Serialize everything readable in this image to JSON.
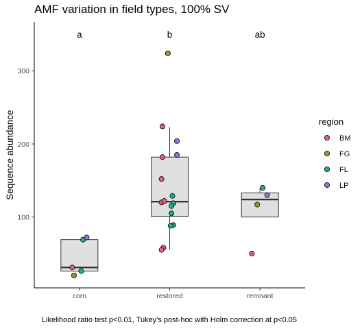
{
  "chart_data": {
    "type": "boxplot",
    "title": "AMF variation in field types, 100% SV",
    "xlabel": "",
    "ylabel": "Sequence abundance",
    "caption": "Likelihood ratio test p<0.01, Tukey's post-hoc with Holm correction at p<0.05",
    "categories": [
      "corn",
      "restored",
      "remnant"
    ],
    "y_ticks": [
      100,
      200,
      300
    ],
    "ylim": [
      3,
      367
    ],
    "grid": false,
    "legend": {
      "title": "region",
      "placement": "right",
      "entries": [
        {
          "name": "BM",
          "color": "#E0607E"
        },
        {
          "name": "FG",
          "color": "#9A9A2A"
        },
        {
          "name": "FL",
          "color": "#24AA8E"
        },
        {
          "name": "LP",
          "color": "#8A79E0"
        }
      ]
    },
    "significance_letters": [
      "a",
      "b",
      "ab"
    ],
    "boxes": [
      {
        "category": "corn",
        "q1": 26,
        "median": 31,
        "q3": 69,
        "whisker_low": 26,
        "whisker_high": 69
      },
      {
        "category": "restored",
        "q1": 101,
        "median": 121,
        "q3": 182,
        "whisker_low": 55,
        "whisker_high": 223
      },
      {
        "category": "remnant",
        "q1": 100,
        "median": 124,
        "q3": 133,
        "whisker_low": 100,
        "whisker_high": 140
      }
    ],
    "points": [
      {
        "category": "corn",
        "region": "BM",
        "jitter": -0.08,
        "y": 31
      },
      {
        "category": "corn",
        "region": "FG",
        "jitter": -0.06,
        "y": 20
      },
      {
        "category": "corn",
        "region": "FL",
        "jitter": 0.02,
        "y": 26
      },
      {
        "category": "corn",
        "region": "FL",
        "jitter": 0.04,
        "y": 69
      },
      {
        "category": "corn",
        "region": "LP",
        "jitter": 0.08,
        "y": 72
      },
      {
        "category": "restored",
        "region": "FG",
        "jitter": -0.02,
        "y": 324
      },
      {
        "category": "restored",
        "region": "BM",
        "jitter": -0.08,
        "y": 224
      },
      {
        "category": "restored",
        "region": "LP",
        "jitter": 0.08,
        "y": 204
      },
      {
        "category": "restored",
        "region": "BM",
        "jitter": -0.08,
        "y": 182
      },
      {
        "category": "restored",
        "region": "LP",
        "jitter": 0.08,
        "y": 185
      },
      {
        "category": "restored",
        "region": "BM",
        "jitter": -0.09,
        "y": 152
      },
      {
        "category": "restored",
        "region": "FL",
        "jitter": 0.03,
        "y": 129
      },
      {
        "category": "restored",
        "region": "BM",
        "jitter": -0.09,
        "y": 120
      },
      {
        "category": "restored",
        "region": "BM",
        "jitter": -0.06,
        "y": 122
      },
      {
        "category": "restored",
        "region": "FL",
        "jitter": 0.04,
        "y": 119
      },
      {
        "category": "restored",
        "region": "FL",
        "jitter": 0.02,
        "y": 115
      },
      {
        "category": "restored",
        "region": "FL",
        "jitter": 0.02,
        "y": 105
      },
      {
        "category": "restored",
        "region": "FL",
        "jitter": 0.04,
        "y": 89
      },
      {
        "category": "restored",
        "region": "FL",
        "jitter": 0.01,
        "y": 88
      },
      {
        "category": "restored",
        "region": "BM",
        "jitter": -0.07,
        "y": 58
      },
      {
        "category": "restored",
        "region": "BM",
        "jitter": -0.09,
        "y": 55
      },
      {
        "category": "remnant",
        "region": "FL",
        "jitter": 0.03,
        "y": 140
      },
      {
        "category": "remnant",
        "region": "LP",
        "jitter": 0.08,
        "y": 130
      },
      {
        "category": "remnant",
        "region": "FG",
        "jitter": -0.03,
        "y": 117
      },
      {
        "category": "remnant",
        "region": "BM",
        "jitter": -0.09,
        "y": 50
      }
    ]
  }
}
